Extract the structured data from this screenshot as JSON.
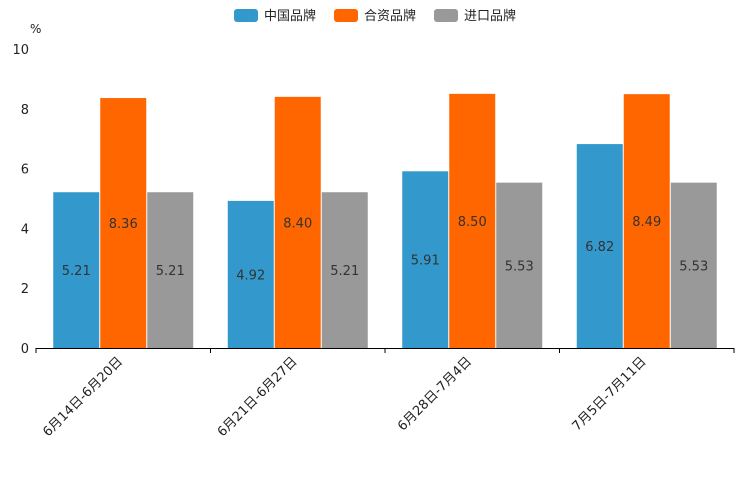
{
  "chart_data": {
    "type": "bar",
    "unit_label": "%",
    "categories": [
      "6月14日-6月20日",
      "6月21日-6月27日",
      "6月28日-7月4日",
      "7月5日-7月11日"
    ],
    "series": [
      {
        "name": "中国品牌",
        "color": "#3399cc",
        "values": [
          5.21,
          4.92,
          5.91,
          6.82
        ],
        "labels": [
          "5.21",
          "4.92",
          "5.91",
          "6.82"
        ]
      },
      {
        "name": "合资品牌",
        "color": "#ff6600",
        "values": [
          8.36,
          8.4,
          8.5,
          8.49
        ],
        "labels": [
          "8.36",
          "8.40",
          "8.50",
          "8.49"
        ]
      },
      {
        "name": "进口品牌",
        "color": "#999999",
        "values": [
          5.21,
          5.21,
          5.53,
          5.53
        ],
        "labels": [
          "5.21",
          "5.21",
          "5.53",
          "5.53"
        ]
      }
    ],
    "ylim": [
      0,
      10
    ],
    "yticks": [
      "0",
      "2",
      "4",
      "6",
      "8",
      "10"
    ],
    "legend_position": "top-center",
    "grid": false
  }
}
